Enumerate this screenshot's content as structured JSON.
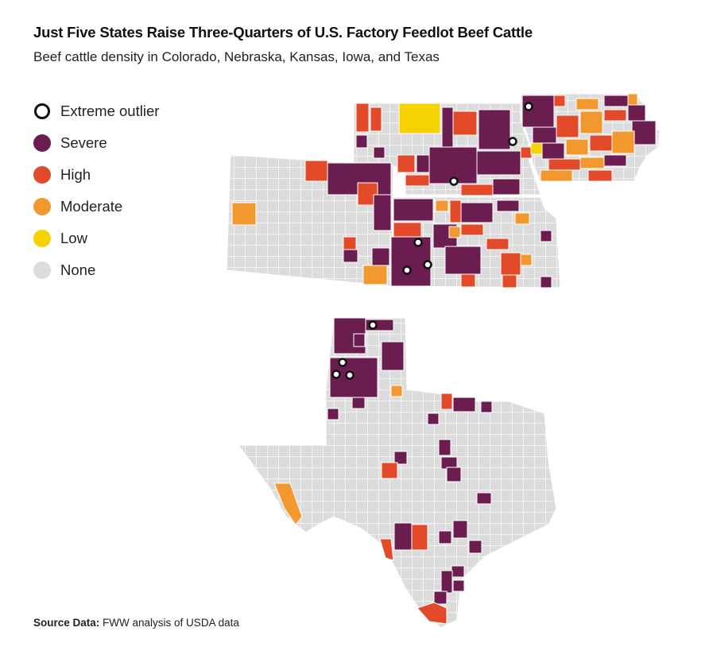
{
  "title": "Just Five States Raise Three-Quarters of U.S. Factory Feedlot Beef Cattle",
  "subtitle": "Beef cattle density in Colorado, Nebraska, Kansas, Iowa, and Texas",
  "legend": [
    {
      "label": "Extreme outlier",
      "color": "#ffffff",
      "kind": "outlier"
    },
    {
      "label": "Severe",
      "color": "#6b1d4f",
      "kind": "severe"
    },
    {
      "label": "High",
      "color": "#e24a2a",
      "kind": "high"
    },
    {
      "label": "Moderate",
      "color": "#f2982f",
      "kind": "moderate"
    },
    {
      "label": "Low",
      "color": "#f6d200",
      "kind": "low"
    },
    {
      "label": "None",
      "color": "#dcdcdc",
      "kind": "none"
    }
  ],
  "source": {
    "label": "Source Data:",
    "text": "FWW analysis of USDA data"
  },
  "states": [
    "Nebraska",
    "Iowa",
    "Colorado",
    "Kansas",
    "Texas"
  ]
}
